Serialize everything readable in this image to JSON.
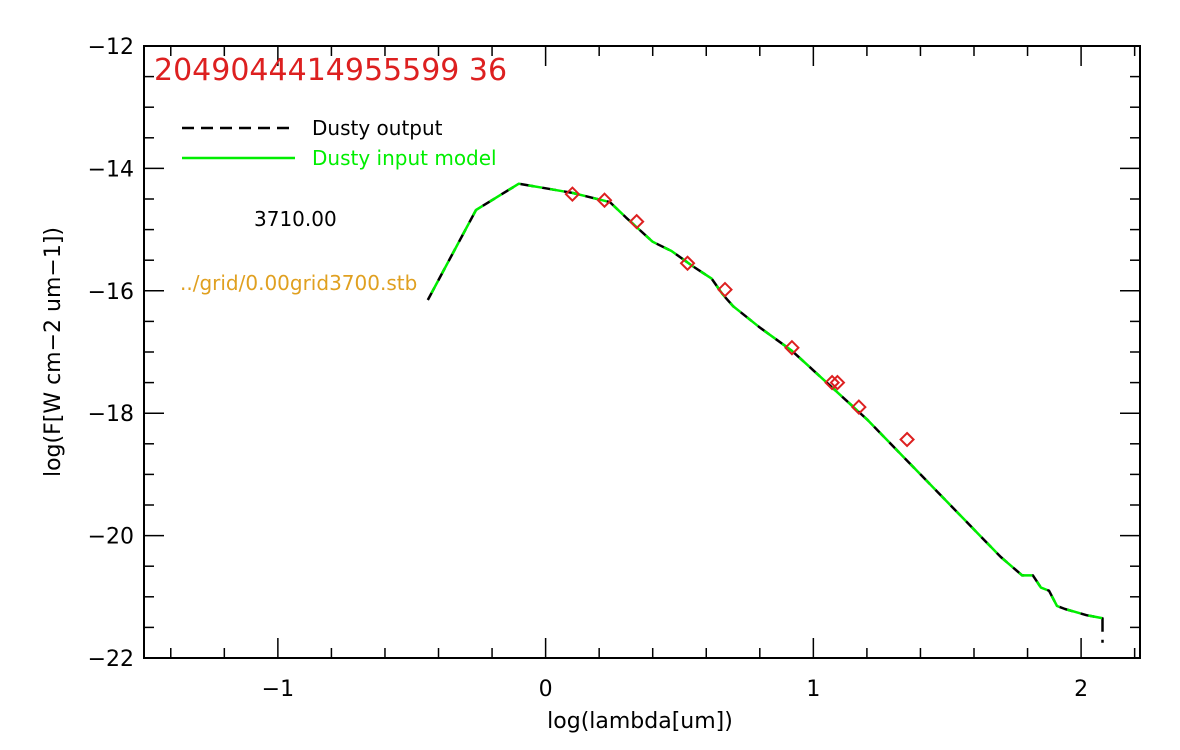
{
  "chart_data": {
    "type": "line",
    "id_label": "2049044414955599 36",
    "xlabel": "log(lambda[um])",
    "ylabel": "log(F[W cm−2 um−1])",
    "xlim": [
      -1.5,
      2.22
    ],
    "ylim": [
      -22,
      -12
    ],
    "xticks": [
      {
        "value": -1,
        "label": "−1"
      },
      {
        "value": 0,
        "label": "0"
      },
      {
        "value": 1,
        "label": "1"
      },
      {
        "value": 2,
        "label": "2"
      }
    ],
    "yticks": [
      {
        "value": -12,
        "label": "−12"
      },
      {
        "value": -14,
        "label": "−14"
      },
      {
        "value": -16,
        "label": "−16"
      },
      {
        "value": -18,
        "label": "−18"
      },
      {
        "value": -20,
        "label": "−20"
      },
      {
        "value": -22,
        "label": "−22"
      }
    ],
    "legend": {
      "placement": "top-left",
      "entries": [
        {
          "label": "Dusty output",
          "color": "#000000",
          "dash": true
        },
        {
          "label": "Dusty input model",
          "color": "#00ee00",
          "dash": false
        }
      ]
    },
    "annotations": [
      {
        "text": "3710.00",
        "color": "#000000"
      },
      {
        "text": "../grid/0.00grid3700.stb",
        "color": "#e0a020"
      }
    ],
    "colors": {
      "id_label": "#dd2020",
      "output": "#000000",
      "input": "#00ee00",
      "points": "#dd2020",
      "path_label": "#e0a020"
    },
    "series": [
      {
        "name": "Dusty output",
        "x": [
          -0.44,
          -0.26,
          -0.1,
          0.1,
          0.24,
          0.3,
          0.4,
          0.47,
          0.55,
          0.62,
          0.66,
          0.7,
          0.8,
          0.92,
          1.0,
          1.1,
          1.2,
          1.3,
          1.4,
          1.5,
          1.6,
          1.7,
          1.78,
          1.82,
          1.85,
          1.88,
          1.91,
          1.94,
          2.02,
          2.08,
          2.08
        ],
        "y": [
          -16.15,
          -14.68,
          -14.25,
          -14.4,
          -14.55,
          -14.8,
          -15.2,
          -15.35,
          -15.6,
          -15.8,
          -16.05,
          -16.25,
          -16.6,
          -16.98,
          -17.3,
          -17.7,
          -18.1,
          -18.55,
          -19.0,
          -19.45,
          -19.9,
          -20.35,
          -20.65,
          -20.65,
          -20.85,
          -20.9,
          -21.15,
          -21.2,
          -21.3,
          -21.35,
          -21.75
        ]
      },
      {
        "name": "Dusty input model",
        "x": [
          -0.44,
          -0.26,
          -0.1,
          0.1,
          0.24,
          0.3,
          0.4,
          0.47,
          0.55,
          0.62,
          0.66,
          0.7,
          0.8,
          0.92,
          1.0,
          1.1,
          1.2,
          1.3,
          1.4,
          1.5,
          1.6,
          1.7,
          1.78,
          1.82,
          1.85,
          1.88,
          1.91,
          1.94,
          2.02,
          2.08
        ],
        "y": [
          -16.15,
          -14.68,
          -14.25,
          -14.4,
          -14.55,
          -14.8,
          -15.2,
          -15.35,
          -15.6,
          -15.8,
          -16.05,
          -16.25,
          -16.6,
          -16.98,
          -17.3,
          -17.7,
          -18.1,
          -18.55,
          -19.0,
          -19.45,
          -19.9,
          -20.35,
          -20.65,
          -20.65,
          -20.85,
          -20.9,
          -21.15,
          -21.2,
          -21.3,
          -21.35
        ]
      },
      {
        "name": "observations",
        "marker": "diamond",
        "x": [
          0.1,
          0.22,
          0.34,
          0.53,
          0.67,
          0.92,
          1.07,
          1.09,
          1.17,
          1.35
        ],
        "y": [
          -14.42,
          -14.52,
          -14.87,
          -15.55,
          -15.98,
          -16.93,
          -17.5,
          -17.5,
          -17.9,
          -18.43
        ]
      }
    ]
  }
}
